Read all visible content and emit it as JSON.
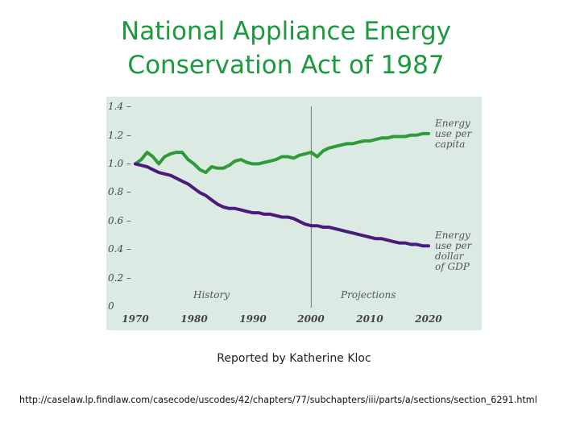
{
  "title": {
    "line1": "National Appliance Energy",
    "line2": "Conservation Act of 1987"
  },
  "credit": "Reported by Katherine Kloc",
  "source_url": "http://caselaw.lp.findlaw.com/casecode/uscodes/42/chapters/77/subchapters/iii/parts/a/sections/section_6291.html",
  "colors": {
    "title": "#1a9a3c",
    "chart_bg": "#dceae4",
    "per_capita": "#2e9a38",
    "per_gdp": "#4b1a7e",
    "divider": "#6f7b8a"
  },
  "chart_data": {
    "type": "line",
    "title": "",
    "xlabel": "",
    "ylabel": "",
    "xlim": [
      1970,
      2020
    ],
    "ylim": [
      0,
      1.4
    ],
    "x_ticks": [
      "1970",
      "1980",
      "1990",
      "2000",
      "2010",
      "2020"
    ],
    "y_ticks": [
      "0",
      "0.2 –",
      "0.4 –",
      "0.6 –",
      "0.8 –",
      "1.0 –",
      "1.2 –",
      "1.4 –"
    ],
    "divider_x": 2000,
    "period_labels": [
      "History",
      "Projections"
    ],
    "series": [
      {
        "name": "Energy use per capita",
        "label_lines": [
          "Energy",
          "use per",
          "capita"
        ],
        "x": [
          1970,
          1971,
          1972,
          1973,
          1974,
          1975,
          1976,
          1977,
          1978,
          1979,
          1980,
          1981,
          1982,
          1983,
          1984,
          1985,
          1986,
          1987,
          1988,
          1989,
          1990,
          1991,
          1992,
          1993,
          1994,
          1995,
          1996,
          1997,
          1998,
          1999,
          2000,
          2001,
          2002,
          2003,
          2004,
          2005,
          2006,
          2007,
          2008,
          2009,
          2010,
          2011,
          2012,
          2013,
          2014,
          2015,
          2016,
          2017,
          2018,
          2019,
          2020
        ],
        "values": [
          1.0,
          1.03,
          1.08,
          1.05,
          1.0,
          1.05,
          1.07,
          1.08,
          1.08,
          1.03,
          1.0,
          0.96,
          0.94,
          0.98,
          0.97,
          0.97,
          0.99,
          1.02,
          1.03,
          1.01,
          1.0,
          1.0,
          1.01,
          1.02,
          1.03,
          1.05,
          1.05,
          1.04,
          1.06,
          1.07,
          1.08,
          1.05,
          1.09,
          1.11,
          1.12,
          1.13,
          1.14,
          1.14,
          1.15,
          1.16,
          1.16,
          1.17,
          1.18,
          1.18,
          1.19,
          1.19,
          1.19,
          1.2,
          1.2,
          1.21,
          1.21
        ]
      },
      {
        "name": "Energy use per dollar of GDP",
        "label_lines": [
          "Energy",
          "use per",
          "dollar",
          "of GDP"
        ],
        "x": [
          1970,
          1971,
          1972,
          1973,
          1974,
          1975,
          1976,
          1977,
          1978,
          1979,
          1980,
          1981,
          1982,
          1983,
          1984,
          1985,
          1986,
          1987,
          1988,
          1989,
          1990,
          1991,
          1992,
          1993,
          1994,
          1995,
          1996,
          1997,
          1998,
          1999,
          2000,
          2001,
          2002,
          2003,
          2004,
          2005,
          2006,
          2007,
          2008,
          2009,
          2010,
          2011,
          2012,
          2013,
          2014,
          2015,
          2016,
          2017,
          2018,
          2019,
          2020
        ],
        "values": [
          1.0,
          0.99,
          0.98,
          0.96,
          0.94,
          0.93,
          0.92,
          0.9,
          0.88,
          0.86,
          0.83,
          0.8,
          0.78,
          0.75,
          0.72,
          0.7,
          0.69,
          0.69,
          0.68,
          0.67,
          0.66,
          0.66,
          0.65,
          0.65,
          0.64,
          0.63,
          0.63,
          0.62,
          0.6,
          0.58,
          0.57,
          0.57,
          0.56,
          0.56,
          0.55,
          0.54,
          0.53,
          0.52,
          0.51,
          0.5,
          0.49,
          0.48,
          0.48,
          0.47,
          0.46,
          0.45,
          0.45,
          0.44,
          0.44,
          0.43,
          0.43
        ]
      }
    ]
  }
}
